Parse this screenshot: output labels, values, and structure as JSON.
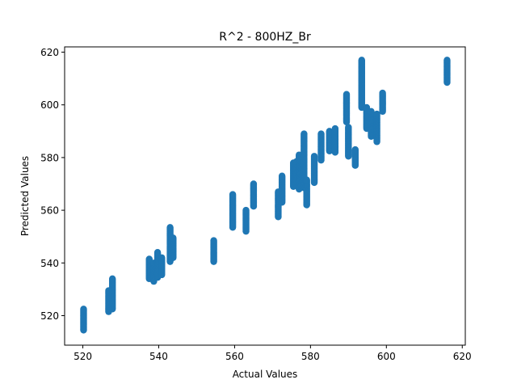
{
  "chart_data": {
    "type": "scatter",
    "title": "R^2 - 800HZ_Br",
    "xlabel": "Actual Values",
    "ylabel": "Predicted Values",
    "xlim": [
      515.2,
      620.8
    ],
    "ylim": [
      508.8,
      622.0
    ],
    "xticks": [
      520,
      540,
      560,
      580,
      600,
      620
    ],
    "yticks": [
      520,
      540,
      560,
      580,
      600,
      620
    ],
    "grid": false,
    "marker_color": "#1f77b4",
    "clusters": [
      {
        "x": 520.2,
        "ymin": 514.5,
        "ymax": 522.5
      },
      {
        "x": 526.8,
        "ymin": 521.5,
        "ymax": 529.5
      },
      {
        "x": 527.8,
        "ymin": 522.5,
        "ymax": 534.0
      },
      {
        "x": 537.5,
        "ymin": 534.0,
        "ymax": 541.5
      },
      {
        "x": 538.7,
        "ymin": 533.0,
        "ymax": 540.0
      },
      {
        "x": 539.7,
        "ymin": 534.5,
        "ymax": 544.0
      },
      {
        "x": 540.8,
        "ymin": 535.5,
        "ymax": 542.0
      },
      {
        "x": 543.0,
        "ymin": 540.5,
        "ymax": 553.5
      },
      {
        "x": 543.8,
        "ymin": 542.0,
        "ymax": 549.5
      },
      {
        "x": 554.5,
        "ymin": 540.5,
        "ymax": 548.5
      },
      {
        "x": 559.5,
        "ymin": 553.5,
        "ymax": 566.0
      },
      {
        "x": 563.0,
        "ymin": 552.0,
        "ymax": 560.0
      },
      {
        "x": 565.0,
        "ymin": 561.5,
        "ymax": 570.0
      },
      {
        "x": 571.5,
        "ymin": 557.5,
        "ymax": 567.0
      },
      {
        "x": 572.5,
        "ymin": 563.0,
        "ymax": 573.0
      },
      {
        "x": 575.5,
        "ymin": 569.0,
        "ymax": 578.0
      },
      {
        "x": 576.3,
        "ymin": 571.0,
        "ymax": 578.5
      },
      {
        "x": 577.0,
        "ymin": 568.0,
        "ymax": 581.0
      },
      {
        "x": 578.3,
        "ymin": 568.5,
        "ymax": 589.0
      },
      {
        "x": 579.0,
        "ymin": 562.0,
        "ymax": 571.5
      },
      {
        "x": 581.0,
        "ymin": 570.5,
        "ymax": 580.5
      },
      {
        "x": 582.8,
        "ymin": 579.0,
        "ymax": 589.0
      },
      {
        "x": 585.0,
        "ymin": 582.5,
        "ymax": 590.0
      },
      {
        "x": 586.5,
        "ymin": 582.0,
        "ymax": 591.0
      },
      {
        "x": 589.5,
        "ymin": 593.5,
        "ymax": 604.0
      },
      {
        "x": 590.0,
        "ymin": 580.5,
        "ymax": 591.5
      },
      {
        "x": 591.8,
        "ymin": 577.0,
        "ymax": 583.0
      },
      {
        "x": 593.5,
        "ymin": 599.0,
        "ymax": 617.0
      },
      {
        "x": 594.8,
        "ymin": 591.0,
        "ymax": 599.0
      },
      {
        "x": 596.0,
        "ymin": 588.0,
        "ymax": 597.5
      },
      {
        "x": 597.5,
        "ymin": 586.0,
        "ymax": 596.5
      },
      {
        "x": 599.0,
        "ymin": 597.5,
        "ymax": 604.5
      },
      {
        "x": 616.0,
        "ymin": 608.5,
        "ymax": 617.0
      }
    ]
  }
}
